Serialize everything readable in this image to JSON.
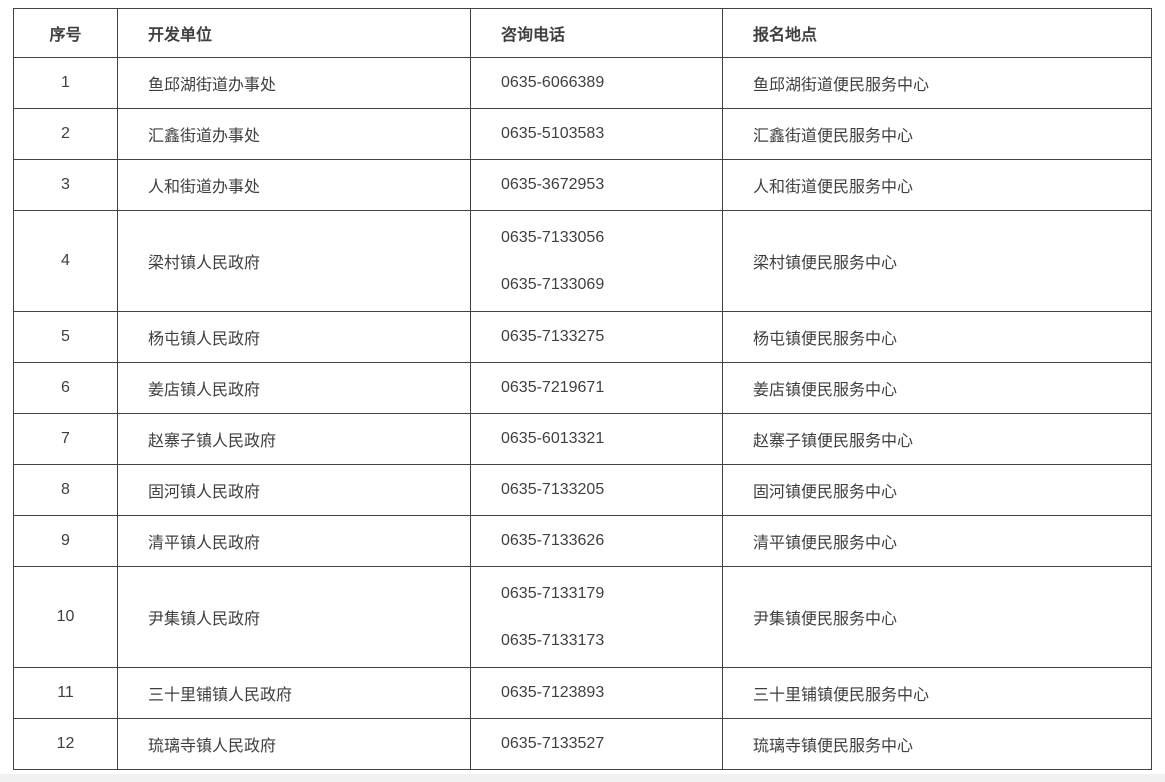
{
  "table": {
    "headers": [
      "序号",
      "开发单位",
      "咨询电话",
      "报名地点"
    ],
    "rows": [
      {
        "no": "1",
        "unit": "鱼邱湖街道办事处",
        "phones": [
          "0635-6066389"
        ],
        "location": "鱼邱湖街道便民服务中心"
      },
      {
        "no": "2",
        "unit": "汇鑫街道办事处",
        "phones": [
          "0635-5103583"
        ],
        "location": "汇鑫街道便民服务中心"
      },
      {
        "no": "3",
        "unit": "人和街道办事处",
        "phones": [
          "0635-3672953"
        ],
        "location": "人和街道便民服务中心"
      },
      {
        "no": "4",
        "unit": "梁村镇人民政府",
        "phones": [
          "0635-7133056",
          "0635-7133069"
        ],
        "location": "梁村镇便民服务中心"
      },
      {
        "no": "5",
        "unit": "杨屯镇人民政府",
        "phones": [
          "0635-7133275"
        ],
        "location": "杨屯镇便民服务中心"
      },
      {
        "no": "6",
        "unit": "姜店镇人民政府",
        "phones": [
          "0635-7219671"
        ],
        "location": "姜店镇便民服务中心"
      },
      {
        "no": "7",
        "unit": "赵寨子镇人民政府",
        "phones": [
          "0635-6013321"
        ],
        "location": "赵寨子镇便民服务中心"
      },
      {
        "no": "8",
        "unit": "固河镇人民政府",
        "phones": [
          "0635-7133205"
        ],
        "location": "固河镇便民服务中心"
      },
      {
        "no": "9",
        "unit": "清平镇人民政府",
        "phones": [
          "0635-7133626"
        ],
        "location": "清平镇便民服务中心"
      },
      {
        "no": "10",
        "unit": "尹集镇人民政府",
        "phones": [
          "0635-7133179",
          "0635-7133173"
        ],
        "location": "尹集镇便民服务中心"
      },
      {
        "no": "11",
        "unit": "三十里铺镇人民政府",
        "phones": [
          "0635-7123893"
        ],
        "location": "三十里铺镇便民服务中心"
      },
      {
        "no": "12",
        "unit": "琉璃寺镇人民政府",
        "phones": [
          "0635-7133527"
        ],
        "location": "琉璃寺镇便民服务中心"
      }
    ],
    "colors": {
      "border": "#424242",
      "text": "#3f3f3f",
      "background": "#ffffff",
      "bottom_strip": "#f1f1f1"
    }
  }
}
